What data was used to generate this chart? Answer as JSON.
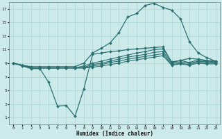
{
  "xlabel": "Humidex (Indice chaleur)",
  "bg_color": "#cceaea",
  "grid_color": "#aad4d4",
  "line_color": "#2a7070",
  "xlim": [
    -0.5,
    23.5
  ],
  "ylim": [
    0,
    18
  ],
  "xticks": [
    0,
    1,
    2,
    3,
    4,
    5,
    6,
    7,
    8,
    9,
    10,
    11,
    12,
    13,
    14,
    15,
    16,
    17,
    18,
    19,
    20,
    21,
    22,
    23
  ],
  "yticks": [
    1,
    3,
    5,
    7,
    9,
    11,
    13,
    15,
    17
  ],
  "arch_x": [
    0,
    1,
    2,
    3,
    4,
    5,
    6,
    7,
    8,
    9,
    10,
    11,
    12,
    13,
    14,
    15,
    16,
    17,
    18,
    19,
    20,
    21,
    22,
    23
  ],
  "arch_y": [
    9,
    8.7,
    8.5,
    8.5,
    8.5,
    8.5,
    8.5,
    8.5,
    9.0,
    10.5,
    11.2,
    12.0,
    13.5,
    15.8,
    16.3,
    17.5,
    17.8,
    17.2,
    16.8,
    15.5,
    12.2,
    10.5,
    9.8,
    9.3
  ],
  "vdip_x": [
    0,
    1,
    2,
    3,
    4,
    5,
    6,
    7,
    8,
    9,
    10,
    11,
    12,
    13,
    14,
    15,
    16,
    17,
    18,
    19,
    20,
    21,
    22,
    23
  ],
  "vdip_y": [
    9,
    8.6,
    8.2,
    8.2,
    6.2,
    2.7,
    2.8,
    1.2,
    5.2,
    10.3,
    10.5,
    10.7,
    10.8,
    11.0,
    11.1,
    11.2,
    11.3,
    11.4,
    9.1,
    9.4,
    9.7,
    9.6,
    9.4,
    9.3
  ],
  "flat1_x": [
    0,
    1,
    2,
    3,
    4,
    5,
    6,
    7,
    8,
    9,
    10,
    11,
    12,
    13,
    14,
    15,
    16,
    17,
    18,
    19,
    20,
    21,
    22,
    23
  ],
  "flat1_y": [
    9,
    8.7,
    8.3,
    8.3,
    8.3,
    8.3,
    8.3,
    8.3,
    8.6,
    9.0,
    9.3,
    9.6,
    9.9,
    10.2,
    10.5,
    10.7,
    11.0,
    11.1,
    9.2,
    9.4,
    9.1,
    9.5,
    9.3,
    9.2
  ],
  "flat2_x": [
    0,
    1,
    2,
    3,
    4,
    5,
    6,
    7,
    8,
    9,
    10,
    11,
    12,
    13,
    14,
    15,
    16,
    17,
    18,
    19,
    20,
    21,
    22,
    23
  ],
  "flat2_y": [
    9,
    8.7,
    8.3,
    8.3,
    8.3,
    8.3,
    8.3,
    8.3,
    8.4,
    8.8,
    9.0,
    9.3,
    9.6,
    9.9,
    10.1,
    10.3,
    10.6,
    10.7,
    9.0,
    9.2,
    9.0,
    9.3,
    9.2,
    9.1
  ],
  "flat3_x": [
    0,
    1,
    2,
    3,
    4,
    5,
    6,
    7,
    8,
    9,
    10,
    11,
    12,
    13,
    14,
    15,
    16,
    17,
    18,
    19,
    20,
    21,
    22,
    23
  ],
  "flat3_y": [
    9,
    8.7,
    8.3,
    8.3,
    8.3,
    8.3,
    8.3,
    8.3,
    8.3,
    8.6,
    8.8,
    9.1,
    9.3,
    9.6,
    9.8,
    10.0,
    10.2,
    10.4,
    8.8,
    9.0,
    8.8,
    9.2,
    9.0,
    9.0
  ],
  "flat4_x": [
    0,
    1,
    2,
    3,
    4,
    5,
    6,
    7,
    8,
    9,
    10,
    11,
    12,
    13,
    14,
    15,
    16,
    17,
    18,
    19,
    20,
    21,
    22,
    23
  ],
  "flat4_y": [
    9,
    8.7,
    8.3,
    8.3,
    8.3,
    8.3,
    8.3,
    8.3,
    8.3,
    8.4,
    8.6,
    8.8,
    9.0,
    9.3,
    9.5,
    9.7,
    9.9,
    10.1,
    8.7,
    8.9,
    8.7,
    9.0,
    8.9,
    8.9
  ]
}
